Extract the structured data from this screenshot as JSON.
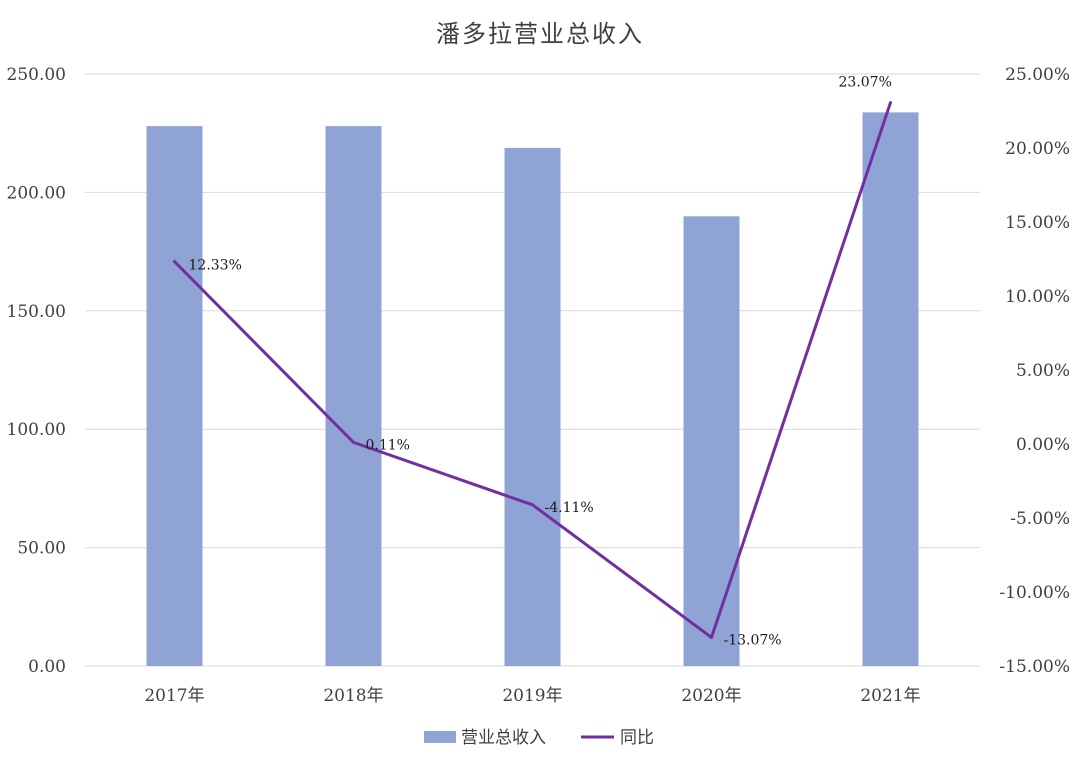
{
  "chart_data": {
    "type": "bar+line",
    "title": "潘多拉营业总收入",
    "categories": [
      "2017年",
      "2018年",
      "2019年",
      "2020年",
      "2021年"
    ],
    "series": [
      {
        "name": "营业总收入",
        "type": "bar",
        "axis": "left",
        "values": [
          228.0,
          228.0,
          218.8,
          189.9,
          233.8
        ],
        "color": "#8fa3d4"
      },
      {
        "name": "同比",
        "type": "line",
        "axis": "right",
        "values": [
          12.33,
          0.11,
          -4.11,
          -13.07,
          23.07
        ],
        "labels": [
          "12.33%",
          "0.11%",
          "-4.11%",
          "-13.07%",
          "23.07%"
        ],
        "color": "#7030a0"
      }
    ],
    "y_left": {
      "ylim": [
        0,
        250
      ],
      "ticks": [
        0,
        50,
        100,
        150,
        200,
        250
      ],
      "tick_labels": [
        "0.00",
        "50.00",
        "100.00",
        "150.00",
        "200.00",
        "250.00"
      ]
    },
    "y_right": {
      "ylim": [
        -15,
        25
      ],
      "ticks": [
        -15,
        -10,
        -5,
        0,
        5,
        10,
        15,
        20,
        25
      ],
      "tick_labels": [
        "-15.00%",
        "-10.00%",
        "-5.00%",
        "0.00%",
        "5.00%",
        "10.00%",
        "15.00%",
        "20.00%",
        "25.00%"
      ]
    },
    "grid": true,
    "legend": "bottom",
    "gridline_color": "#d9d9d9"
  }
}
